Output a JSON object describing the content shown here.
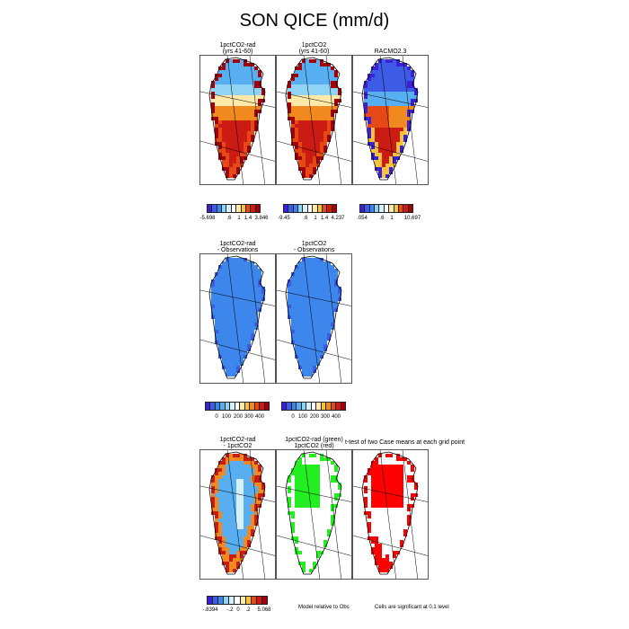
{
  "title": "SON QICE (mm/d)",
  "row1": {
    "panels": [
      {
        "title1": "1pctCO2-rad",
        "title2": "(yrs 41-60)"
      },
      {
        "title1": "1pctCO2",
        "title2": "(yrs 41-60)"
      },
      {
        "title1": "RACMO2.3",
        "title2": ""
      }
    ],
    "colorbars": [
      {
        "labels": [
          "-5.698",
          ".6",
          "1",
          "1.4",
          "3.846"
        ]
      },
      {
        "labels": [
          "-9.45",
          ".6",
          "1",
          "1.4",
          "4.237"
        ]
      },
      {
        "labels": [
          ".054",
          ".6",
          "1",
          "10.697"
        ]
      }
    ]
  },
  "row2": {
    "panels": [
      {
        "title1": "1pctCO2-rad",
        "title2": "- Observations"
      },
      {
        "title1": "1pctCO2",
        "title2": "- Observations"
      }
    ],
    "colorbars": [
      {
        "labels": [
          "0",
          "100",
          "200",
          "300",
          "400"
        ]
      },
      {
        "labels": [
          "0",
          "100",
          "200",
          "300",
          "400"
        ]
      }
    ]
  },
  "row3": {
    "panels": [
      {
        "title1": "1pctCO2-rad",
        "title2": "- 1pctCO2"
      },
      {
        "title1": "1pctCO2-rad (green)",
        "title2": "1pctCO2 (red)"
      },
      {
        "title1": "",
        "title2": ""
      }
    ],
    "ttest_title": "t-test of two Case means at each grid point",
    "colorbar": {
      "labels": [
        "-.8394",
        "-.2",
        "0",
        ".2",
        "5.068"
      ]
    },
    "note_left": "Model relative to Obs",
    "note_right": "Cells are significant at 0.1 level"
  },
  "chart_data": {
    "type": "heatmap",
    "title": "SON QICE (mm/d)",
    "region": "Greenland",
    "panels": [
      {
        "name": "1pctCO2-rad (yrs 41-60)",
        "colorbar_ticks": [
          "-5.698",
          ".6",
          "1",
          "1.4",
          "3.846"
        ],
        "colorbar_range": [
          -5.698,
          3.846
        ]
      },
      {
        "name": "1pctCO2 (yrs 41-60)",
        "colorbar_ticks": [
          "-9.45",
          ".6",
          "1",
          "1.4",
          "4.237"
        ],
        "colorbar_range": [
          -9.45,
          4.237
        ]
      },
      {
        "name": "RACMO2.3",
        "colorbar_ticks": [
          ".054",
          ".6",
          "1",
          "10.697"
        ],
        "colorbar_range": [
          0.054,
          10.697
        ]
      },
      {
        "name": "1pctCO2-rad - Observations",
        "colorbar_ticks": [
          "0",
          "100",
          "200",
          "300",
          "400"
        ]
      },
      {
        "name": "1pctCO2 - Observations",
        "colorbar_ticks": [
          "0",
          "100",
          "200",
          "300",
          "400"
        ]
      },
      {
        "name": "1pctCO2-rad - 1pctCO2",
        "colorbar_ticks": [
          "-.8394",
          "-.2",
          "0",
          ".2",
          "5.068"
        ],
        "colorbar_range": [
          -0.8394,
          5.068
        ]
      },
      {
        "name": "t-test of two Case means at each grid point",
        "series": [
          "1pctCO2-rad (green)",
          "1pctCO2 (red)"
        ]
      }
    ],
    "colors": {
      "scale": [
        "#3b1fd9",
        "#3c5ce6",
        "#3d86ec",
        "#57aef0",
        "#8fd3f5",
        "#d6f0fb",
        "#ffffff",
        "#ffe9a8",
        "#f9c23b",
        "#f08a1e",
        "#e54a16",
        "#cc1b12",
        "#a3000c"
      ],
      "green": "#22ee22",
      "red": "#ff0000"
    }
  }
}
